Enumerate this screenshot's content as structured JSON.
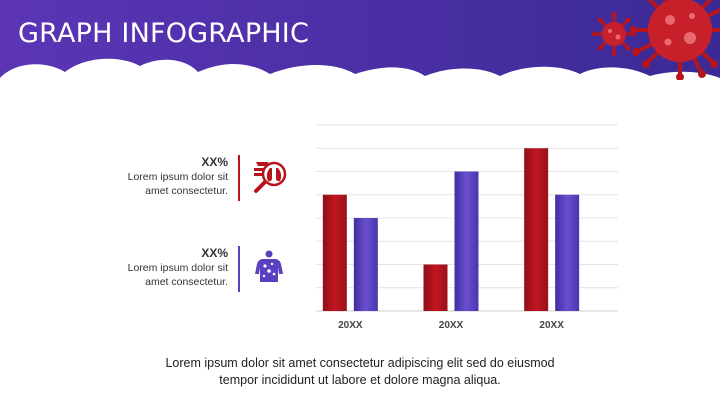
{
  "title": "GRAPH INFOGRAPHIC",
  "legend": [
    {
      "value": "XX%",
      "text_line1": "Lorem ipsum dolor sit",
      "text_line2": "amet consectetur.",
      "icon": "lungs-magnifier-icon",
      "color": "#b8141d"
    },
    {
      "value": "XX%",
      "text_line1": "Lorem ipsum dolor sit",
      "text_line2": "amet consectetur.",
      "icon": "body-virus-icon",
      "color": "#5a3fc0"
    }
  ],
  "chart_data": {
    "type": "bar",
    "categories": [
      "20XX",
      "20XX",
      "20XX"
    ],
    "series": [
      {
        "values": [
          5,
          2,
          7
        ],
        "color": "#b8141d"
      },
      {
        "values": [
          4,
          6,
          5
        ],
        "color": "#5a3fc0"
      }
    ],
    "ylim": [
      0,
      8
    ],
    "grid": true
  },
  "footer_line1": "Lorem ipsum dolor sit amet consectetur adipiscing elit sed do eiusmod",
  "footer_line2": "tempor incididunt ut labore et dolore magna aliqua.",
  "colors": {
    "header_start": "#5b35b5",
    "header_end": "#3b2a95",
    "accent_red": "#b8141d",
    "accent_purple": "#5a3fc0"
  }
}
